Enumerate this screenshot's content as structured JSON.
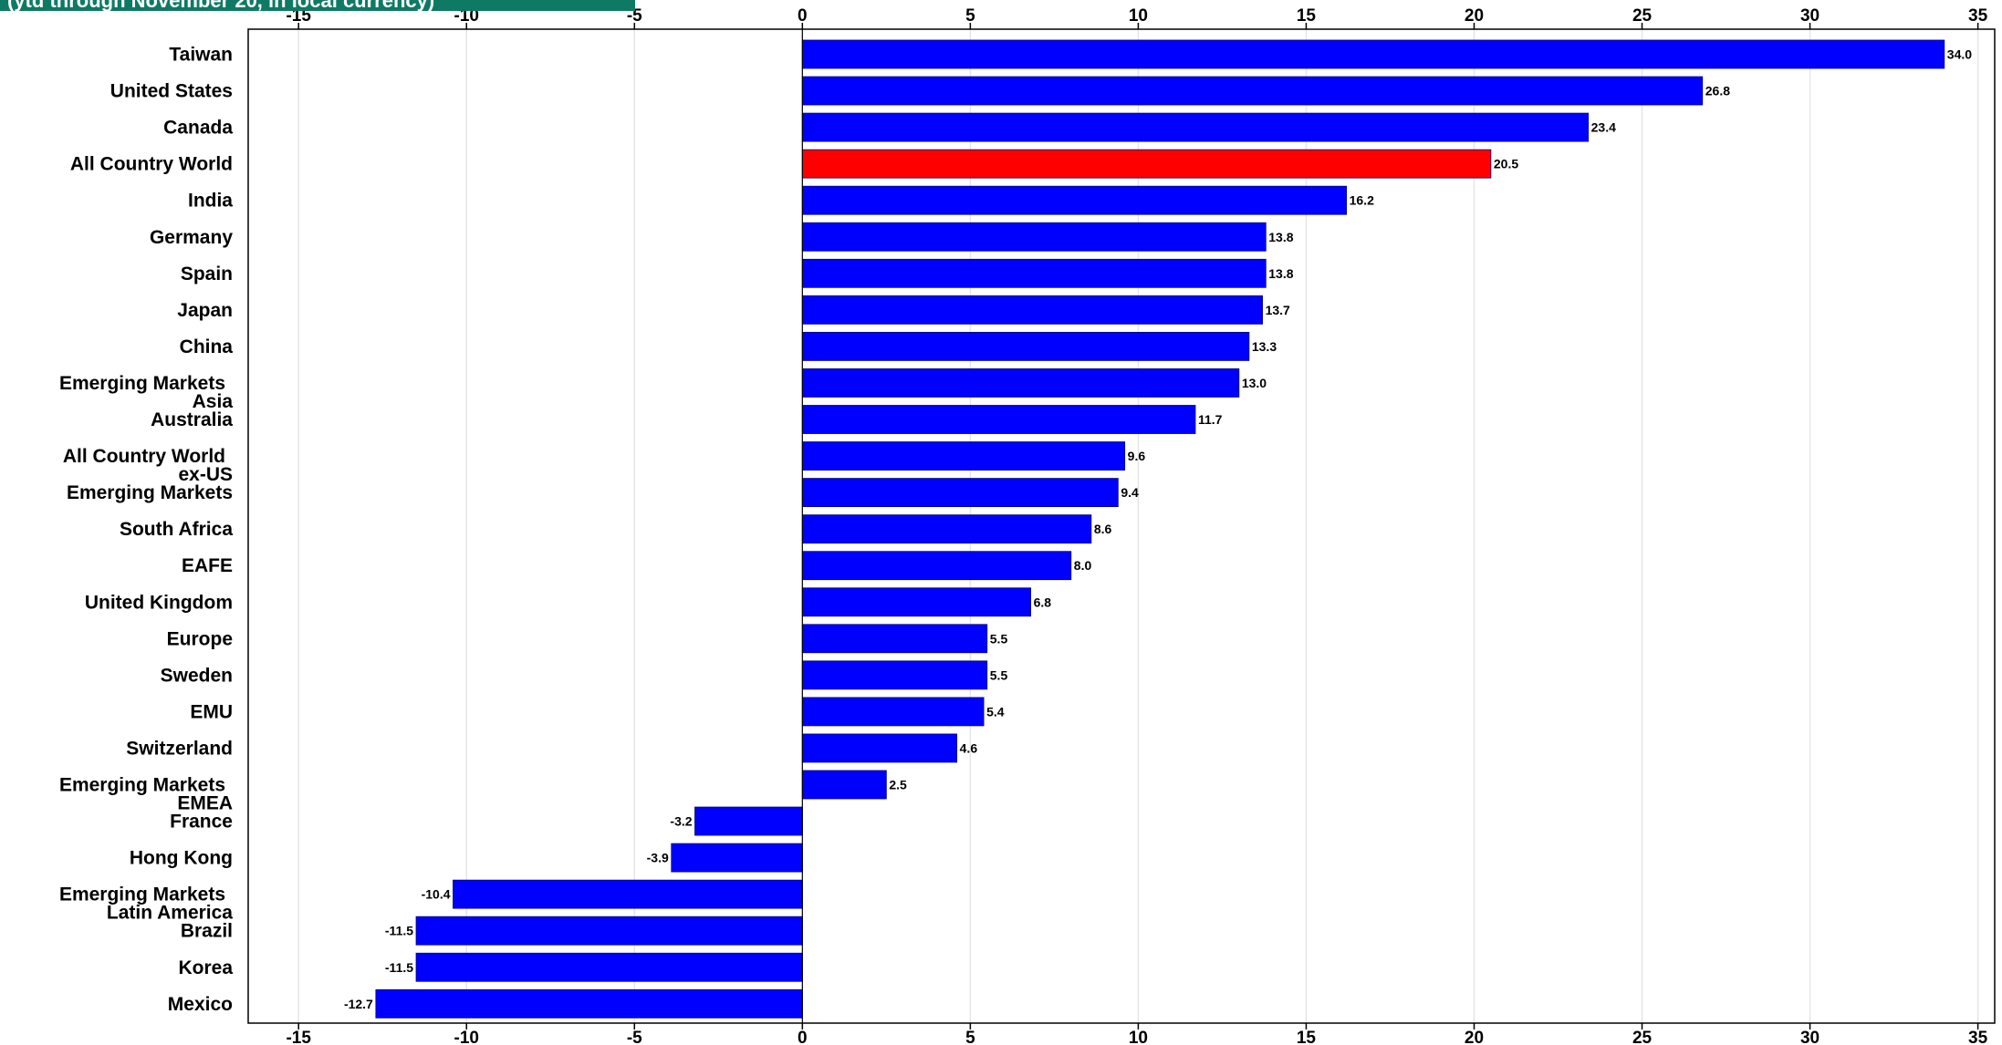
{
  "header": {
    "title": "(ytd through November 20, in local currency)"
  },
  "chart_data": {
    "type": "bar",
    "orientation": "horizontal",
    "categories": [
      "Taiwan",
      "United States",
      "Canada",
      "All Country World",
      "India",
      "Germany",
      "Spain",
      "Japan",
      "China",
      "Emerging Markets Asia",
      "Australia",
      "All Country World ex-US",
      "Emerging Markets",
      "South Africa",
      "EAFE",
      "United Kingdom",
      "Europe",
      "Sweden",
      "EMU",
      "Switzerland",
      "Emerging Markets EMEA",
      "France",
      "Hong Kong",
      "Emerging Markets Latin America",
      "Brazil",
      "Korea",
      "Mexico"
    ],
    "values": [
      34.0,
      26.8,
      23.4,
      20.5,
      16.2,
      13.8,
      13.8,
      13.7,
      13.3,
      13.0,
      11.7,
      9.6,
      9.4,
      8.6,
      8.0,
      6.8,
      5.5,
      5.5,
      5.4,
      4.6,
      2.5,
      -3.2,
      -3.9,
      -10.4,
      -11.5,
      -11.5,
      -12.7
    ],
    "value_labels": [
      "34.0",
      "26.8",
      "23.4",
      "20.5",
      "16.2",
      "13.8",
      "13.8",
      "13.7",
      "13.3",
      "13.0",
      "11.7",
      "9.6",
      "9.4",
      "8.6",
      "8.0",
      "6.8",
      "5.5",
      "5.5",
      "5.4",
      "4.6",
      "2.5",
      "-3.2",
      "-3.9",
      "-10.4",
      "-11.5",
      "-11.5",
      "-12.7"
    ],
    "highlight_index": 3,
    "bar_color": "#0000ff",
    "highlight_color": "#ff0000",
    "xlim": [
      -16.5,
      35.5
    ],
    "xticks": [
      -15,
      -10,
      -5,
      0,
      5,
      10,
      15,
      20,
      25,
      30,
      35
    ],
    "tick_labels": [
      "-15",
      "-10",
      "-5",
      "0",
      "5",
      "10",
      "15",
      "20",
      "25",
      "30",
      "35"
    ],
    "grid": true,
    "xlabel": "",
    "ylabel": ""
  }
}
